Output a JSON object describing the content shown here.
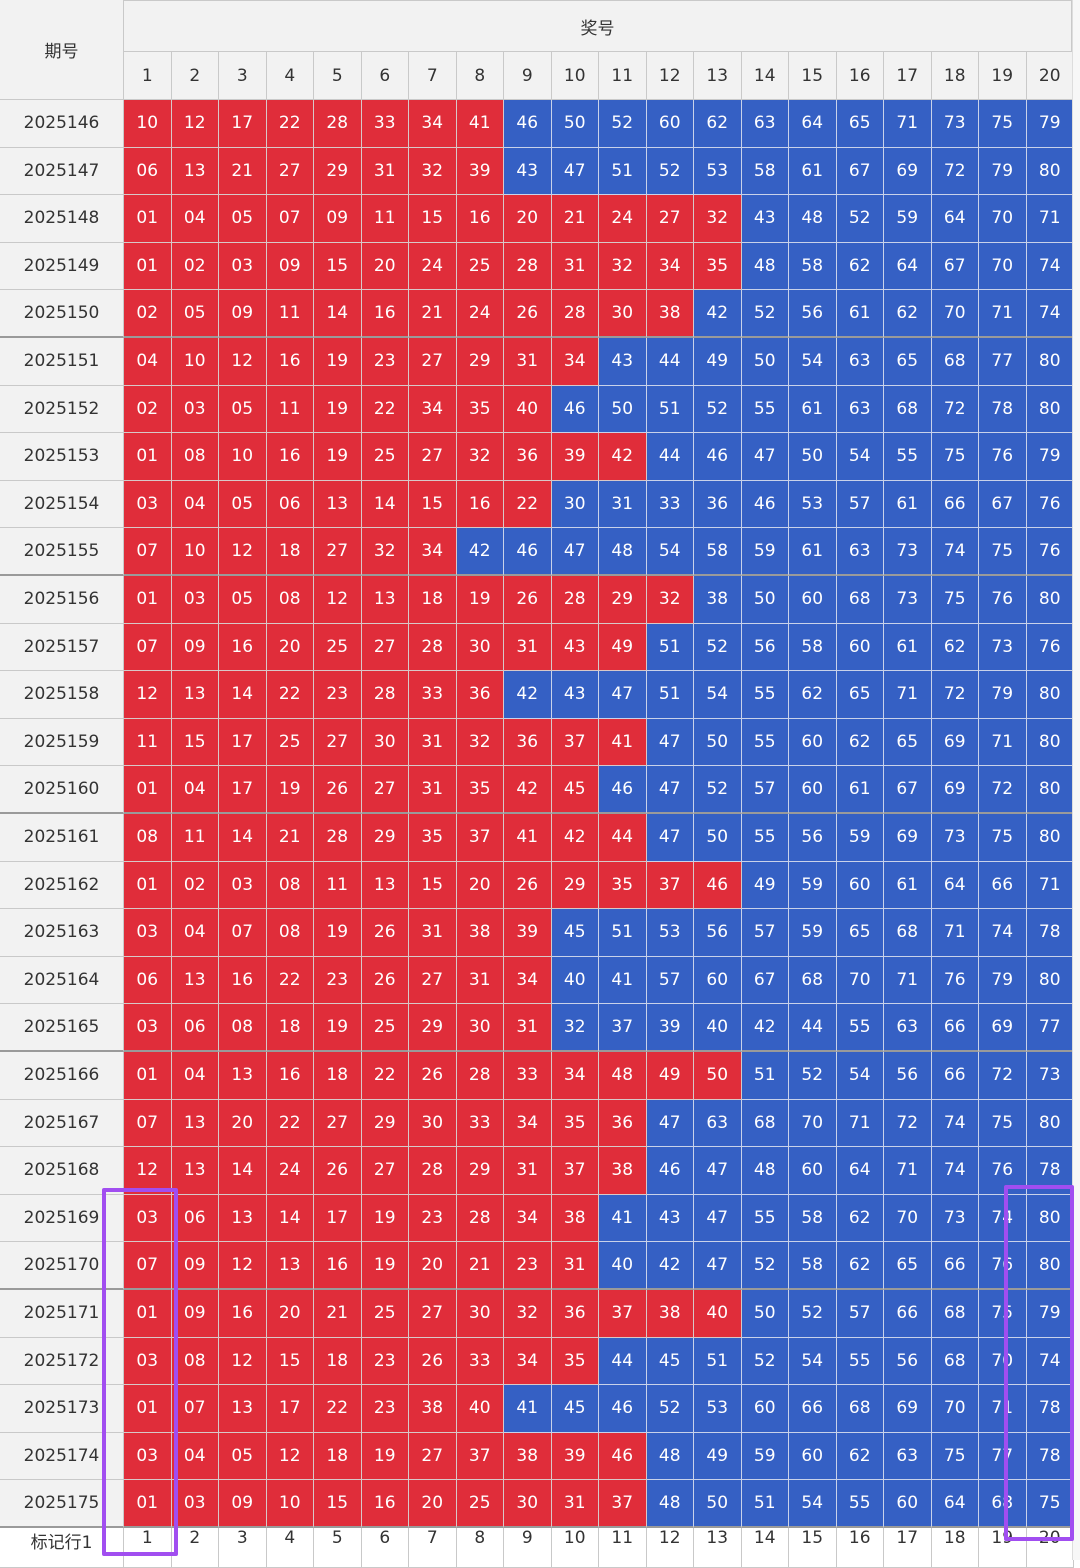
{
  "header": {
    "period_label": "期号",
    "numbers_label": "奖号",
    "columns": [
      "1",
      "2",
      "3",
      "4",
      "5",
      "6",
      "7",
      "8",
      "9",
      "10",
      "11",
      "12",
      "13",
      "14",
      "15",
      "16",
      "17",
      "18",
      "19",
      "20"
    ]
  },
  "colors": {
    "red": "#e02d3a",
    "blue": "#3560c4",
    "highlight": "#a14ef0"
  },
  "rows": [
    {
      "period": "2025146",
      "nums": [
        "10",
        "12",
        "17",
        "22",
        "28",
        "33",
        "34",
        "41",
        "46",
        "50",
        "52",
        "60",
        "62",
        "63",
        "64",
        "65",
        "71",
        "73",
        "75",
        "79"
      ]
    },
    {
      "period": "2025147",
      "nums": [
        "06",
        "13",
        "21",
        "27",
        "29",
        "31",
        "32",
        "39",
        "43",
        "47",
        "51",
        "52",
        "53",
        "58",
        "61",
        "67",
        "69",
        "72",
        "79",
        "80"
      ]
    },
    {
      "period": "2025148",
      "nums": [
        "01",
        "04",
        "05",
        "07",
        "09",
        "11",
        "15",
        "16",
        "20",
        "21",
        "24",
        "27",
        "32",
        "43",
        "48",
        "52",
        "59",
        "64",
        "70",
        "71"
      ]
    },
    {
      "period": "2025149",
      "nums": [
        "01",
        "02",
        "03",
        "09",
        "15",
        "20",
        "24",
        "25",
        "28",
        "31",
        "32",
        "34",
        "35",
        "48",
        "58",
        "62",
        "64",
        "67",
        "70",
        "74"
      ]
    },
    {
      "period": "2025150",
      "nums": [
        "02",
        "05",
        "09",
        "11",
        "14",
        "16",
        "21",
        "24",
        "26",
        "28",
        "30",
        "38",
        "42",
        "52",
        "56",
        "61",
        "62",
        "70",
        "71",
        "74"
      ]
    },
    {
      "period": "2025151",
      "nums": [
        "04",
        "10",
        "12",
        "16",
        "19",
        "23",
        "27",
        "29",
        "31",
        "34",
        "43",
        "44",
        "49",
        "50",
        "54",
        "63",
        "65",
        "68",
        "77",
        "80"
      ]
    },
    {
      "period": "2025152",
      "nums": [
        "02",
        "03",
        "05",
        "11",
        "19",
        "22",
        "34",
        "35",
        "40",
        "46",
        "50",
        "51",
        "52",
        "55",
        "61",
        "63",
        "68",
        "72",
        "78",
        "80"
      ]
    },
    {
      "period": "2025153",
      "nums": [
        "01",
        "08",
        "10",
        "16",
        "19",
        "25",
        "27",
        "32",
        "36",
        "39",
        "42",
        "44",
        "46",
        "47",
        "50",
        "54",
        "55",
        "75",
        "76",
        "79"
      ]
    },
    {
      "period": "2025154",
      "nums": [
        "03",
        "04",
        "05",
        "06",
        "13",
        "14",
        "15",
        "16",
        "22",
        "30",
        "31",
        "33",
        "36",
        "46",
        "53",
        "57",
        "61",
        "66",
        "67",
        "76"
      ]
    },
    {
      "period": "2025155",
      "nums": [
        "07",
        "10",
        "12",
        "18",
        "27",
        "32",
        "34",
        "42",
        "46",
        "47",
        "48",
        "54",
        "58",
        "59",
        "61",
        "63",
        "73",
        "74",
        "75",
        "76"
      ]
    },
    {
      "period": "2025156",
      "nums": [
        "01",
        "03",
        "05",
        "08",
        "12",
        "13",
        "18",
        "19",
        "26",
        "28",
        "29",
        "32",
        "38",
        "50",
        "60",
        "68",
        "73",
        "75",
        "76",
        "80"
      ]
    },
    {
      "period": "2025157",
      "nums": [
        "07",
        "09",
        "16",
        "20",
        "25",
        "27",
        "28",
        "30",
        "31",
        "43",
        "49",
        "51",
        "52",
        "56",
        "58",
        "60",
        "61",
        "62",
        "73",
        "76"
      ]
    },
    {
      "period": "2025158",
      "nums": [
        "12",
        "13",
        "14",
        "22",
        "23",
        "28",
        "33",
        "36",
        "42",
        "43",
        "47",
        "51",
        "54",
        "55",
        "62",
        "65",
        "71",
        "72",
        "79",
        "80"
      ]
    },
    {
      "period": "2025159",
      "nums": [
        "11",
        "15",
        "17",
        "25",
        "27",
        "30",
        "31",
        "32",
        "36",
        "37",
        "41",
        "47",
        "50",
        "55",
        "60",
        "62",
        "65",
        "69",
        "71",
        "80"
      ]
    },
    {
      "period": "2025160",
      "nums": [
        "01",
        "04",
        "17",
        "19",
        "26",
        "27",
        "31",
        "35",
        "42",
        "45",
        "46",
        "47",
        "52",
        "57",
        "60",
        "61",
        "67",
        "69",
        "72",
        "80"
      ]
    },
    {
      "period": "2025161",
      "nums": [
        "08",
        "11",
        "14",
        "21",
        "28",
        "29",
        "35",
        "37",
        "41",
        "42",
        "44",
        "47",
        "50",
        "55",
        "56",
        "59",
        "69",
        "73",
        "75",
        "80"
      ]
    },
    {
      "period": "2025162",
      "nums": [
        "01",
        "02",
        "03",
        "08",
        "11",
        "13",
        "15",
        "20",
        "26",
        "29",
        "35",
        "37",
        "46",
        "49",
        "59",
        "60",
        "61",
        "64",
        "66",
        "71"
      ]
    },
    {
      "period": "2025163",
      "nums": [
        "03",
        "04",
        "07",
        "08",
        "19",
        "26",
        "31",
        "38",
        "39",
        "45",
        "51",
        "53",
        "56",
        "57",
        "59",
        "65",
        "68",
        "71",
        "74",
        "78"
      ]
    },
    {
      "period": "2025164",
      "nums": [
        "06",
        "13",
        "16",
        "22",
        "23",
        "26",
        "27",
        "31",
        "34",
        "40",
        "41",
        "57",
        "60",
        "67",
        "68",
        "70",
        "71",
        "76",
        "79",
        "80"
      ]
    },
    {
      "period": "2025165",
      "nums": [
        "03",
        "06",
        "08",
        "18",
        "19",
        "25",
        "29",
        "30",
        "31",
        "32",
        "37",
        "39",
        "40",
        "42",
        "44",
        "55",
        "63",
        "66",
        "69",
        "77"
      ]
    },
    {
      "period": "2025166",
      "nums": [
        "01",
        "04",
        "13",
        "16",
        "18",
        "22",
        "26",
        "28",
        "33",
        "34",
        "48",
        "49",
        "50",
        "51",
        "52",
        "54",
        "56",
        "66",
        "72",
        "73"
      ]
    },
    {
      "period": "2025167",
      "nums": [
        "07",
        "13",
        "20",
        "22",
        "27",
        "29",
        "30",
        "33",
        "34",
        "35",
        "36",
        "47",
        "63",
        "68",
        "70",
        "71",
        "72",
        "74",
        "75",
        "80"
      ]
    },
    {
      "period": "2025168",
      "nums": [
        "12",
        "13",
        "14",
        "24",
        "26",
        "27",
        "28",
        "29",
        "31",
        "37",
        "38",
        "46",
        "47",
        "48",
        "60",
        "64",
        "71",
        "74",
        "76",
        "78"
      ]
    },
    {
      "period": "2025169",
      "nums": [
        "03",
        "06",
        "13",
        "14",
        "17",
        "19",
        "23",
        "28",
        "34",
        "38",
        "41",
        "43",
        "47",
        "55",
        "58",
        "62",
        "70",
        "73",
        "74",
        "80"
      ]
    },
    {
      "period": "2025170",
      "nums": [
        "07",
        "09",
        "12",
        "13",
        "16",
        "19",
        "20",
        "21",
        "23",
        "31",
        "40",
        "42",
        "47",
        "52",
        "58",
        "62",
        "65",
        "66",
        "76",
        "80"
      ]
    },
    {
      "period": "2025171",
      "nums": [
        "01",
        "09",
        "16",
        "20",
        "21",
        "25",
        "27",
        "30",
        "32",
        "36",
        "37",
        "38",
        "40",
        "50",
        "52",
        "57",
        "66",
        "68",
        "75",
        "79"
      ]
    },
    {
      "period": "2025172",
      "nums": [
        "03",
        "08",
        "12",
        "15",
        "18",
        "23",
        "26",
        "33",
        "34",
        "35",
        "44",
        "45",
        "51",
        "52",
        "54",
        "55",
        "56",
        "68",
        "70",
        "74"
      ]
    },
    {
      "period": "2025173",
      "nums": [
        "01",
        "07",
        "13",
        "17",
        "22",
        "23",
        "38",
        "40",
        "41",
        "45",
        "46",
        "52",
        "53",
        "60",
        "66",
        "68",
        "69",
        "70",
        "71",
        "78"
      ]
    },
    {
      "period": "2025174",
      "nums": [
        "03",
        "04",
        "05",
        "12",
        "18",
        "19",
        "27",
        "37",
        "38",
        "39",
        "46",
        "48",
        "49",
        "59",
        "60",
        "62",
        "63",
        "75",
        "77",
        "78"
      ]
    },
    {
      "period": "2025175",
      "nums": [
        "01",
        "03",
        "09",
        "10",
        "15",
        "16",
        "20",
        "25",
        "30",
        "31",
        "37",
        "48",
        "50",
        "51",
        "54",
        "55",
        "60",
        "64",
        "68",
        "75"
      ]
    }
  ],
  "red_counts": [
    8,
    8,
    13,
    13,
    12,
    10,
    9,
    11,
    9,
    7,
    12,
    11,
    8,
    11,
    10,
    11,
    13,
    9,
    9,
    9,
    13,
    11,
    11,
    10,
    10,
    13,
    10,
    8,
    11,
    11
  ],
  "footer": {
    "label": "标记行1",
    "columns": [
      "1",
      "2",
      "3",
      "4",
      "5",
      "6",
      "7",
      "8",
      "9",
      "10",
      "11",
      "12",
      "13",
      "14",
      "15",
      "16",
      "17",
      "18",
      "19",
      "20"
    ]
  }
}
